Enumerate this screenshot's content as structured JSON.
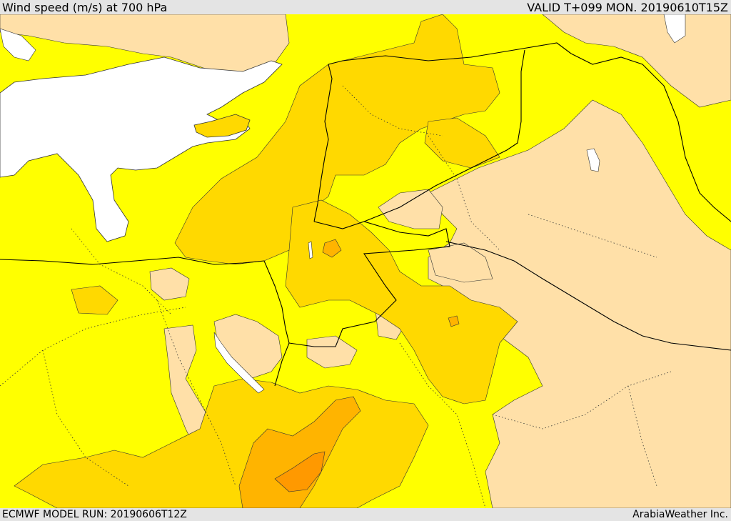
{
  "header": {
    "title": "Wind speed (m/s) at 700 hPa",
    "valid_time": "VALID T+099 MON. 20190610T15Z"
  },
  "footer": {
    "model_run": "ECMWF MODEL RUN: 20190606T12Z",
    "credit": "ArabiaWeather Inc."
  },
  "map": {
    "variable": "wind speed",
    "level": "700 hPa",
    "colors": {
      "sea": "#ffffff",
      "band_light": "#ffe0a8",
      "band_yellow": "#ffff00",
      "band_gold": "#ffd900",
      "band_orange": "#ffb400",
      "band_dark_orange": "#ff9900",
      "borders": "#000000"
    }
  }
}
